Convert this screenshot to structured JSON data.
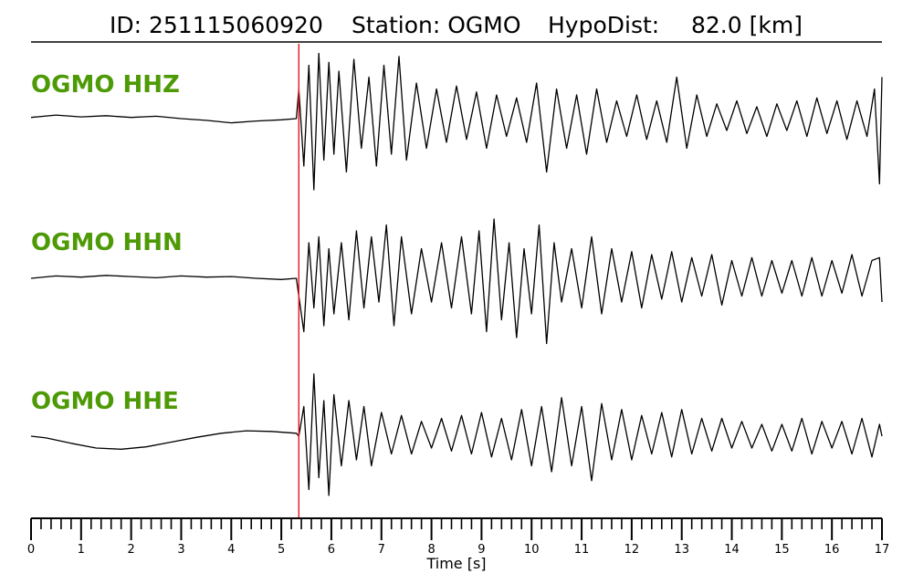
{
  "title": {
    "id_text": "ID: 251115060920",
    "station_text": "Station: OGMO",
    "hypodist_text": "HypoDist:",
    "hypodist_value": "82.0 [km]"
  },
  "colors": {
    "label": "#4e9a06",
    "trace": "#000000",
    "pick": "#e8141e"
  },
  "chart_data": {
    "type": "line",
    "xlabel": "Time [s]",
    "xlim": [
      0,
      17
    ],
    "x_ticks": [
      0,
      1,
      2,
      3,
      4,
      5,
      6,
      7,
      8,
      9,
      10,
      11,
      12,
      13,
      14,
      15,
      16,
      17
    ],
    "minor_tick_step": 0.2,
    "grid": false,
    "p_pick_time": 5.35,
    "series": [
      {
        "name": "OGMO HHZ",
        "x": [
          0,
          0.5,
          1,
          1.5,
          2,
          2.5,
          3,
          3.5,
          4,
          4.5,
          5,
          5.3,
          5.35,
          5.45,
          5.55,
          5.65,
          5.75,
          5.85,
          5.95,
          6.05,
          6.15,
          6.3,
          6.45,
          6.6,
          6.75,
          6.9,
          7.05,
          7.2,
          7.35,
          7.5,
          7.7,
          7.9,
          8.1,
          8.3,
          8.5,
          8.7,
          8.9,
          9.1,
          9.3,
          9.5,
          9.7,
          9.9,
          10.1,
          10.3,
          10.5,
          10.7,
          10.9,
          11.1,
          11.3,
          11.5,
          11.7,
          11.9,
          12.1,
          12.3,
          12.5,
          12.7,
          12.9,
          13.1,
          13.3,
          13.5,
          13.7,
          13.9,
          14.1,
          14.3,
          14.5,
          14.7,
          14.9,
          15.1,
          15.3,
          15.5,
          15.7,
          15.9,
          16.1,
          16.3,
          16.5,
          16.7,
          16.85,
          16.95,
          17
        ],
        "y": [
          0.02,
          0.06,
          0.03,
          0.05,
          0.02,
          0.04,
          0.0,
          -0.03,
          -0.07,
          -0.04,
          -0.02,
          0.0,
          0.5,
          -0.8,
          0.9,
          -1.2,
          1.1,
          -0.7,
          0.95,
          -0.6,
          0.8,
          -0.9,
          1.0,
          -0.5,
          0.7,
          -0.8,
          0.9,
          -0.6,
          1.05,
          -0.7,
          0.6,
          -0.5,
          0.5,
          -0.4,
          0.55,
          -0.35,
          0.45,
          -0.5,
          0.4,
          -0.3,
          0.35,
          -0.4,
          0.6,
          -0.9,
          0.5,
          -0.5,
          0.4,
          -0.6,
          0.5,
          -0.4,
          0.3,
          -0.3,
          0.4,
          -0.35,
          0.3,
          -0.4,
          0.7,
          -0.5,
          0.4,
          -0.3,
          0.25,
          -0.2,
          0.3,
          -0.25,
          0.2,
          -0.3,
          0.25,
          -0.2,
          0.3,
          -0.3,
          0.35,
          -0.25,
          0.3,
          -0.35,
          0.3,
          -0.3,
          0.5,
          -1.1,
          0.7
        ]
      },
      {
        "name": "OGMO HHN",
        "x": [
          0,
          0.5,
          1,
          1.5,
          2,
          2.5,
          3,
          3.5,
          4,
          4.5,
          5,
          5.3,
          5.35,
          5.45,
          5.55,
          5.65,
          5.75,
          5.85,
          5.95,
          6.05,
          6.2,
          6.35,
          6.5,
          6.65,
          6.8,
          6.95,
          7.1,
          7.25,
          7.4,
          7.6,
          7.8,
          8.0,
          8.2,
          8.4,
          8.6,
          8.8,
          8.95,
          9.1,
          9.25,
          9.4,
          9.55,
          9.7,
          9.85,
          10.0,
          10.15,
          10.3,
          10.45,
          10.6,
          10.8,
          11.0,
          11.2,
          11.4,
          11.6,
          11.8,
          12.0,
          12.2,
          12.4,
          12.6,
          12.8,
          13.0,
          13.2,
          13.4,
          13.6,
          13.8,
          14.0,
          14.2,
          14.4,
          14.6,
          14.8,
          15.0,
          15.2,
          15.4,
          15.6,
          15.8,
          16.0,
          16.2,
          16.4,
          16.6,
          16.8,
          16.95,
          17
        ],
        "y": [
          0.0,
          0.04,
          0.02,
          0.05,
          0.03,
          0.01,
          0.04,
          0.02,
          0.03,
          0.0,
          -0.02,
          0.0,
          -0.3,
          -0.9,
          0.6,
          -0.5,
          0.7,
          -0.8,
          0.5,
          -0.6,
          0.6,
          -0.7,
          0.8,
          -0.5,
          0.7,
          -0.4,
          0.9,
          -0.8,
          0.7,
          -0.6,
          0.5,
          -0.4,
          0.6,
          -0.5,
          0.7,
          -0.6,
          0.8,
          -0.9,
          1.0,
          -0.7,
          0.6,
          -1.0,
          0.5,
          -0.6,
          0.9,
          -1.1,
          0.6,
          -0.4,
          0.5,
          -0.5,
          0.7,
          -0.6,
          0.5,
          -0.4,
          0.45,
          -0.5,
          0.4,
          -0.35,
          0.45,
          -0.4,
          0.35,
          -0.3,
          0.4,
          -0.45,
          0.3,
          -0.3,
          0.35,
          -0.3,
          0.3,
          -0.25,
          0.3,
          -0.3,
          0.35,
          -0.3,
          0.3,
          -0.25,
          0.4,
          -0.3,
          0.3,
          0.35,
          -0.4
        ]
      },
      {
        "name": "OGMO HHE",
        "x": [
          0,
          0.3,
          0.8,
          1.3,
          1.8,
          2.3,
          2.8,
          3.3,
          3.8,
          4.3,
          4.8,
          5.3,
          5.35,
          5.45,
          5.55,
          5.65,
          5.75,
          5.85,
          5.95,
          6.05,
          6.2,
          6.35,
          6.5,
          6.65,
          6.8,
          7.0,
          7.2,
          7.4,
          7.6,
          7.8,
          8.0,
          8.2,
          8.4,
          8.6,
          8.8,
          9.0,
          9.2,
          9.4,
          9.6,
          9.8,
          10.0,
          10.2,
          10.4,
          10.6,
          10.8,
          11.0,
          11.2,
          11.4,
          11.6,
          11.8,
          12.0,
          12.2,
          12.4,
          12.6,
          12.8,
          13.0,
          13.2,
          13.4,
          13.6,
          13.8,
          14.0,
          14.2,
          14.4,
          14.6,
          14.8,
          15.0,
          15.2,
          15.4,
          15.6,
          15.8,
          16.0,
          16.2,
          16.4,
          16.6,
          16.8,
          16.95,
          17
        ],
        "y": [
          0.0,
          -0.03,
          -0.12,
          -0.2,
          -0.22,
          -0.18,
          -0.1,
          -0.02,
          0.05,
          0.09,
          0.08,
          0.05,
          0.0,
          0.5,
          -0.9,
          1.05,
          -0.7,
          0.6,
          -1.0,
          0.7,
          -0.5,
          0.6,
          -0.4,
          0.5,
          -0.5,
          0.4,
          -0.3,
          0.35,
          -0.3,
          0.25,
          -0.2,
          0.3,
          -0.25,
          0.35,
          -0.3,
          0.4,
          -0.35,
          0.3,
          -0.4,
          0.45,
          -0.5,
          0.5,
          -0.6,
          0.65,
          -0.5,
          0.5,
          -0.75,
          0.55,
          -0.4,
          0.45,
          -0.4,
          0.35,
          -0.3,
          0.4,
          -0.35,
          0.45,
          -0.3,
          0.3,
          -0.25,
          0.3,
          -0.2,
          0.25,
          -0.2,
          0.2,
          -0.25,
          0.2,
          -0.25,
          0.3,
          -0.3,
          0.25,
          -0.2,
          0.25,
          -0.3,
          0.3,
          -0.35,
          0.2,
          0.0
        ]
      }
    ]
  }
}
